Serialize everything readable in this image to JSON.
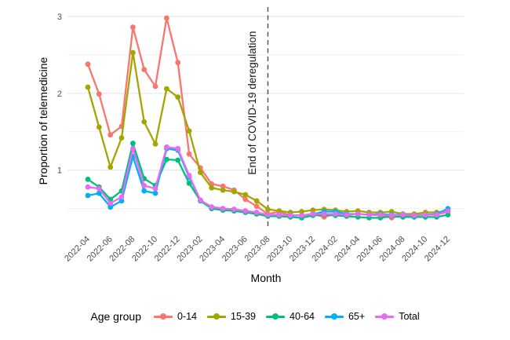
{
  "figure": {
    "background": "#FFFFFF"
  },
  "chart_data": {
    "type": "line",
    "title": "",
    "xlabel": "Month",
    "ylabel": "Proportion of telemedicine",
    "legend_title": "Age group",
    "legend_position": "bottom",
    "grid": "horizontal-only",
    "ylim": [
      0.24,
      3.13
    ],
    "y_ticks": [
      1,
      2,
      3
    ],
    "y_minor_gridlines": [
      0.5,
      1.5,
      2.5
    ],
    "x_tick_every": 2,
    "x": [
      "2022-04",
      "2022-05",
      "2022-06",
      "2022-07",
      "2022-08",
      "2022-09",
      "2022-10",
      "2022-11",
      "2022-12",
      "2023-01",
      "2023-02",
      "2023-03",
      "2023-04",
      "2023-05",
      "2023-06",
      "2023-07",
      "2023-08",
      "2023-09",
      "2023-10",
      "2023-11",
      "2023-12",
      "2024-01",
      "2024-02",
      "2024-03",
      "2024-04",
      "2024-05",
      "2024-06",
      "2024-07",
      "2024-08",
      "2024-09",
      "2024-10",
      "2024-11",
      "2024-12"
    ],
    "x_tick_labels": [
      "2022-04",
      "2022-06",
      "2022-08",
      "2022-10",
      "2022-12",
      "2023-02",
      "2023-04",
      "2023-06",
      "2023-08",
      "2023-10",
      "2023-12",
      "2024-02",
      "2024-04",
      "2024-06",
      "2024-08",
      "2024-10",
      "2024-12"
    ],
    "series": [
      {
        "name": "0-14",
        "color": "#F8766D",
        "values": [
          2.38,
          1.99,
          1.46,
          1.57,
          2.86,
          2.31,
          2.09,
          2.98,
          2.4,
          1.21,
          1.03,
          0.82,
          0.79,
          0.74,
          0.62,
          0.53,
          0.43,
          0.46,
          0.41,
          0.41,
          0.43,
          0.39,
          0.43,
          0.42,
          0.43,
          0.42,
          0.41,
          0.38,
          0.41,
          0.41,
          0.42,
          0.42,
          0.46
        ]
      },
      {
        "name": "15-39",
        "color": "#A3A500",
        "values": [
          2.08,
          1.56,
          1.04,
          1.42,
          2.53,
          1.63,
          1.34,
          2.06,
          1.95,
          1.51,
          0.97,
          0.77,
          0.74,
          0.72,
          0.68,
          0.6,
          0.49,
          0.47,
          0.45,
          0.46,
          0.48,
          0.49,
          0.48,
          0.46,
          0.47,
          0.45,
          0.45,
          0.46,
          0.43,
          0.43,
          0.45,
          0.45,
          0.47
        ]
      },
      {
        "name": "40-64",
        "color": "#00BF7D",
        "values": [
          0.88,
          0.78,
          0.62,
          0.73,
          1.35,
          0.89,
          0.8,
          1.14,
          1.13,
          0.83,
          0.6,
          0.5,
          0.48,
          0.47,
          0.45,
          0.43,
          0.4,
          0.4,
          0.39,
          0.38,
          0.41,
          0.42,
          0.41,
          0.4,
          0.39,
          0.38,
          0.38,
          0.4,
          0.39,
          0.39,
          0.39,
          0.39,
          0.42
        ]
      },
      {
        "name": "65+",
        "color": "#00B0F6",
        "values": [
          0.67,
          0.7,
          0.52,
          0.6,
          1.18,
          0.73,
          0.7,
          1.28,
          1.26,
          0.91,
          0.61,
          0.52,
          0.5,
          0.49,
          0.47,
          0.45,
          0.42,
          0.42,
          0.41,
          0.41,
          0.43,
          0.46,
          0.46,
          0.43,
          0.43,
          0.42,
          0.43,
          0.42,
          0.42,
          0.41,
          0.42,
          0.43,
          0.5
        ]
      },
      {
        "name": "Total",
        "color": "#E76BF3",
        "values": [
          0.78,
          0.76,
          0.57,
          0.65,
          1.28,
          0.8,
          0.76,
          1.3,
          1.28,
          0.93,
          0.61,
          0.52,
          0.5,
          0.49,
          0.47,
          0.45,
          0.42,
          0.42,
          0.41,
          0.41,
          0.43,
          0.43,
          0.43,
          0.42,
          0.43,
          0.42,
          0.42,
          0.41,
          0.42,
          0.41,
          0.42,
          0.42,
          0.47
        ]
      }
    ],
    "annotation": {
      "label": "End of COVID-19 deregulation",
      "x": "2023-08",
      "line_style": "dashed",
      "line_color": "#4D4D4D"
    },
    "colors": {
      "tick_label": "#4D4D4D",
      "axis_title": "#000000",
      "grid_major": "#E2E2E2",
      "grid_minor": "#F0F0F0"
    }
  }
}
